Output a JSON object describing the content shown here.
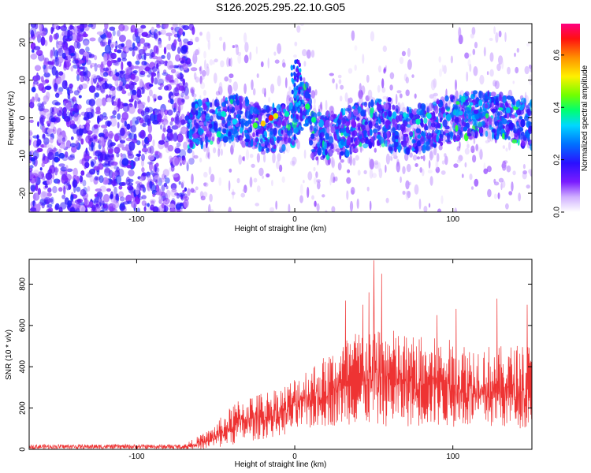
{
  "title": "S126.2025.295.22.10.G05",
  "chart_data": [
    {
      "type": "heatmap",
      "xlabel": "Height of straight line (km)",
      "ylabel": "Frequency (Hz)",
      "xlim": [
        -168,
        150
      ],
      "ylim": [
        -25,
        25
      ],
      "xticks": [
        -100,
        0,
        100
      ],
      "yticks": [
        -20,
        -10,
        0,
        10,
        20
      ],
      "colorbar": {
        "label": "Normalized spectral amplitude",
        "range": [
          0.0,
          0.72
        ],
        "ticks": [
          "0.0",
          "0.2",
          "0.4",
          "0.6"
        ],
        "tick_values": [
          0.0,
          0.2,
          0.4,
          0.6
        ]
      },
      "description_regions": [
        {
          "x_range": [
            -168,
            -68
          ],
          "pattern": "broad noise, amplitude 0.05-0.2, all frequencies"
        },
        {
          "x_range": [
            -68,
            150
          ],
          "pattern": "narrow band centred near 0 Hz (about -12 Hz to +10 Hz), peak amplitude about 0.65 near x = -15"
        }
      ]
    },
    {
      "type": "line",
      "xlabel": "Height of straight line (km)",
      "ylabel": "SNR (10 * v/v)",
      "xlim": [
        -168,
        150
      ],
      "ylim": [
        0,
        920
      ],
      "xticks": [
        -100,
        0,
        100
      ],
      "yticks": [
        0,
        200,
        400,
        600,
        800
      ],
      "color": "#ee3333",
      "envelope": [
        {
          "x": -168,
          "low": 0,
          "high": 25
        },
        {
          "x": -70,
          "low": 0,
          "high": 25
        },
        {
          "x": -55,
          "low": 0,
          "high": 90
        },
        {
          "x": -45,
          "low": 10,
          "high": 170
        },
        {
          "x": -35,
          "low": 30,
          "high": 250
        },
        {
          "x": -20,
          "low": 50,
          "high": 280
        },
        {
          "x": -5,
          "low": 70,
          "high": 320
        },
        {
          "x": 5,
          "low": 90,
          "high": 390
        },
        {
          "x": 20,
          "low": 110,
          "high": 460
        },
        {
          "x": 35,
          "low": 120,
          "high": 560
        },
        {
          "x": 50,
          "low": 110,
          "high": 620
        },
        {
          "x": 70,
          "low": 110,
          "high": 560
        },
        {
          "x": 90,
          "low": 110,
          "high": 540
        },
        {
          "x": 110,
          "low": 100,
          "high": 520
        },
        {
          "x": 130,
          "low": 100,
          "high": 500
        },
        {
          "x": 150,
          "low": 100,
          "high": 520
        }
      ],
      "peaks": [
        {
          "x": 50,
          "y": 915
        },
        {
          "x": 55,
          "y": 850
        },
        {
          "x": 32,
          "y": 720
        },
        {
          "x": 47,
          "y": 760
        },
        {
          "x": 43,
          "y": 700
        },
        {
          "x": 128,
          "y": 730
        },
        {
          "x": 147,
          "y": 700
        },
        {
          "x": 102,
          "y": 680
        },
        {
          "x": 90,
          "y": 650
        }
      ]
    }
  ]
}
